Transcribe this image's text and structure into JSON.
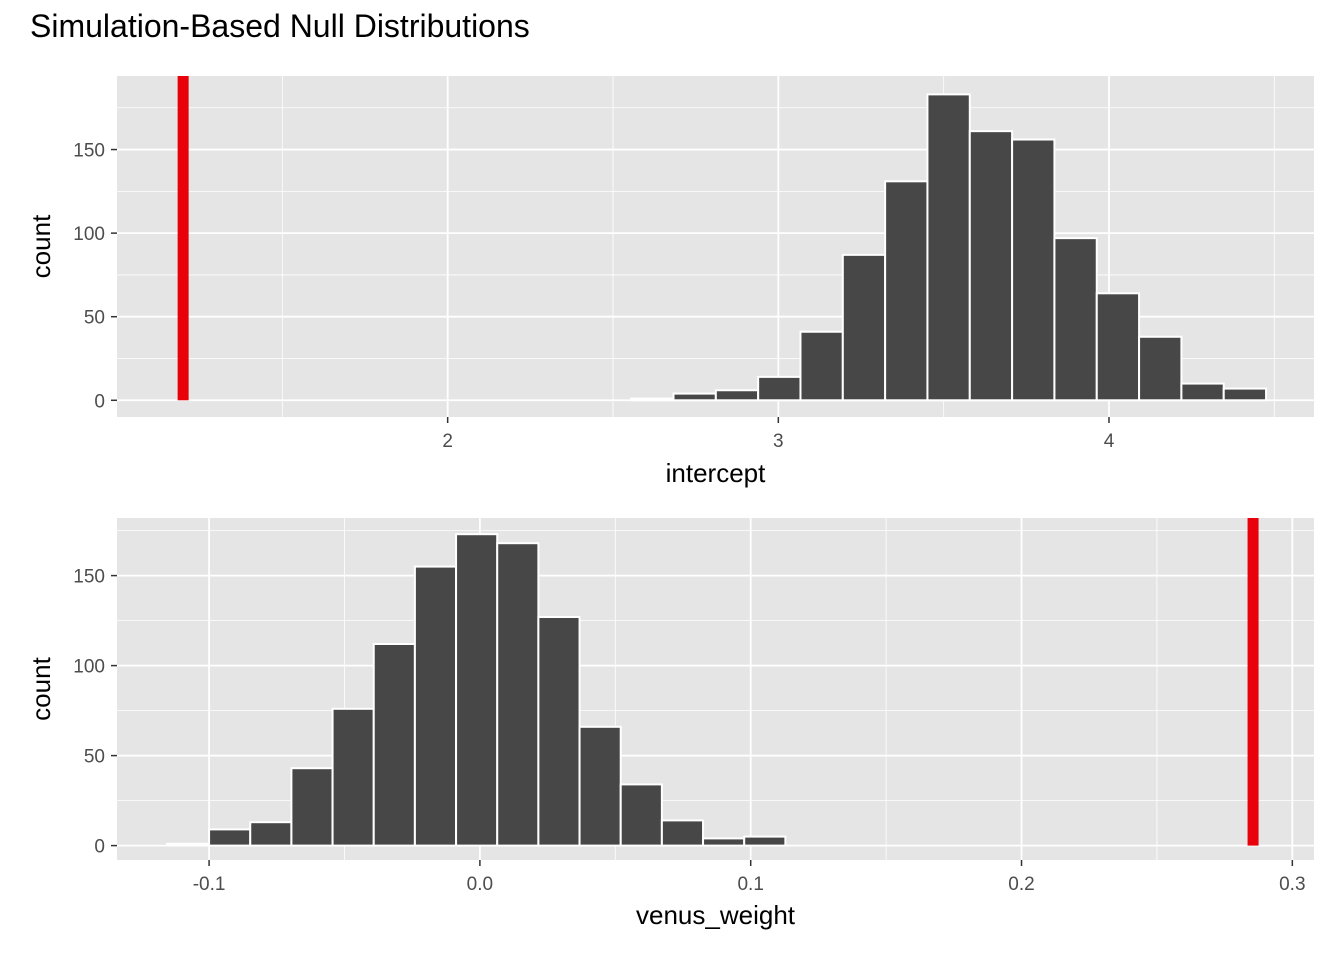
{
  "title": "Simulation-Based Null Distributions",
  "colors": {
    "panel": "#e5e5e5",
    "grid": "#ffffff",
    "bar": "#474747",
    "bar_outline": "#ffffff",
    "obs_line": "#e8000b",
    "shade": "#ffc0cb"
  },
  "chart_data": [
    {
      "type": "bar",
      "panel": "top",
      "xlabel": "intercept",
      "ylabel": "count",
      "xlim": [
        1.0,
        4.62
      ],
      "ylim": [
        -10,
        194
      ],
      "x_ticks": [
        2,
        3,
        4
      ],
      "x_tick_labels": [
        "2",
        "3",
        "4"
      ],
      "y_ticks": [
        0,
        50,
        100,
        150
      ],
      "y_tick_labels": [
        "0",
        "50",
        "100",
        "150"
      ],
      "observed_stat": 1.2,
      "bins": [
        {
          "x0": 2.555,
          "x1": 2.683,
          "count": 1
        },
        {
          "x0": 2.683,
          "x1": 2.811,
          "count": 4
        },
        {
          "x0": 2.811,
          "x1": 2.939,
          "count": 6
        },
        {
          "x0": 2.939,
          "x1": 3.067,
          "count": 14
        },
        {
          "x0": 3.067,
          "x1": 3.195,
          "count": 41
        },
        {
          "x0": 3.195,
          "x1": 3.323,
          "count": 87
        },
        {
          "x0": 3.323,
          "x1": 3.451,
          "count": 131
        },
        {
          "x0": 3.451,
          "x1": 3.579,
          "count": 183
        },
        {
          "x0": 3.579,
          "x1": 3.707,
          "count": 161
        },
        {
          "x0": 3.707,
          "x1": 3.835,
          "count": 156
        },
        {
          "x0": 3.835,
          "x1": 3.963,
          "count": 97
        },
        {
          "x0": 3.963,
          "x1": 4.091,
          "count": 64
        },
        {
          "x0": 4.091,
          "x1": 4.219,
          "count": 38
        },
        {
          "x0": 4.219,
          "x1": 4.347,
          "count": 10
        },
        {
          "x0": 4.347,
          "x1": 4.475,
          "count": 7
        }
      ]
    },
    {
      "type": "bar",
      "panel": "bottom",
      "xlabel": "venus_weight",
      "ylabel": "count",
      "xlim": [
        -0.134,
        0.308
      ],
      "ylim": [
        -8,
        182
      ],
      "x_ticks": [
        -0.1,
        0.0,
        0.1,
        0.2,
        0.3
      ],
      "x_tick_labels": [
        "-0.1",
        "0.0",
        "0.1",
        "0.2",
        "0.3"
      ],
      "y_ticks": [
        0,
        50,
        100,
        150
      ],
      "y_tick_labels": [
        "0",
        "50",
        "100",
        "150"
      ],
      "observed_stat": 0.2855,
      "bins": [
        {
          "x0": -0.1155,
          "x1": -0.1,
          "count": 1
        },
        {
          "x0": -0.1,
          "x1": -0.0848,
          "count": 9
        },
        {
          "x0": -0.0848,
          "x1": -0.0696,
          "count": 13
        },
        {
          "x0": -0.0696,
          "x1": -0.0544,
          "count": 43
        },
        {
          "x0": -0.0544,
          "x1": -0.0392,
          "count": 76
        },
        {
          "x0": -0.0392,
          "x1": -0.024,
          "count": 112
        },
        {
          "x0": -0.024,
          "x1": -0.0088,
          "count": 155
        },
        {
          "x0": -0.0088,
          "x1": 0.0064,
          "count": 173
        },
        {
          "x0": 0.0064,
          "x1": 0.0216,
          "count": 168
        },
        {
          "x0": 0.0216,
          "x1": 0.0368,
          "count": 127
        },
        {
          "x0": 0.0368,
          "x1": 0.052,
          "count": 66
        },
        {
          "x0": 0.052,
          "x1": 0.0672,
          "count": 34
        },
        {
          "x0": 0.0672,
          "x1": 0.0824,
          "count": 14
        },
        {
          "x0": 0.0824,
          "x1": 0.0976,
          "count": 4
        },
        {
          "x0": 0.0976,
          "x1": 0.1128,
          "count": 5
        }
      ]
    }
  ]
}
